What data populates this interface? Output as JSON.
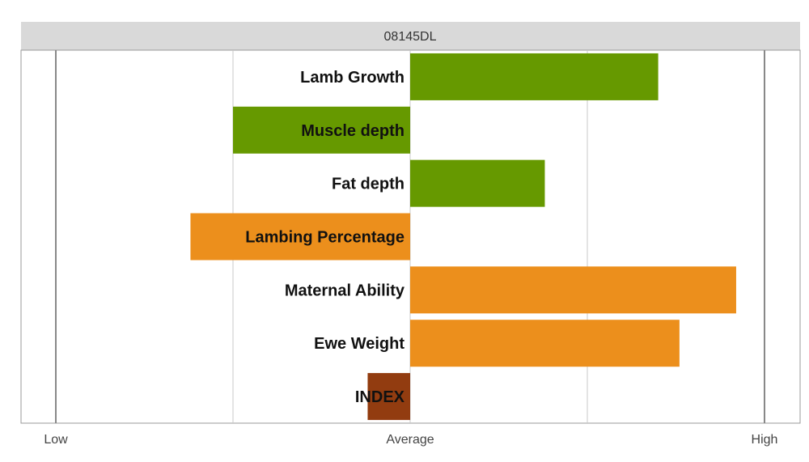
{
  "chart_data": {
    "type": "bar",
    "orientation": "horizontal",
    "title": "08145DL",
    "categories": [
      "Lamb Growth",
      "Muscle depth",
      "Fat depth",
      "Lambing Percentage",
      "Maternal Ability",
      "Ewe Weight",
      "INDEX"
    ],
    "values": [
      0.7,
      -0.5,
      0.38,
      -0.62,
      0.92,
      0.76,
      -0.12
    ],
    "bar_colors": [
      "#669900",
      "#669900",
      "#669900",
      "#ec8f1c",
      "#ec8f1c",
      "#ec8f1c",
      "#923c10"
    ],
    "xlim": [
      -1,
      1
    ],
    "tick_labels": [
      {
        "value": -1,
        "label": "Low"
      },
      {
        "value": 0,
        "label": "Average"
      },
      {
        "value": 1,
        "label": "High"
      }
    ],
    "gridlines": [
      -1,
      -0.5,
      0,
      0.5,
      1
    ],
    "grid": true,
    "legend": "none"
  },
  "colors": {
    "title_band": "#d9d9d9",
    "frame": "#999999",
    "gridline": "#c8c8c8",
    "axis_line": "#888888"
  }
}
